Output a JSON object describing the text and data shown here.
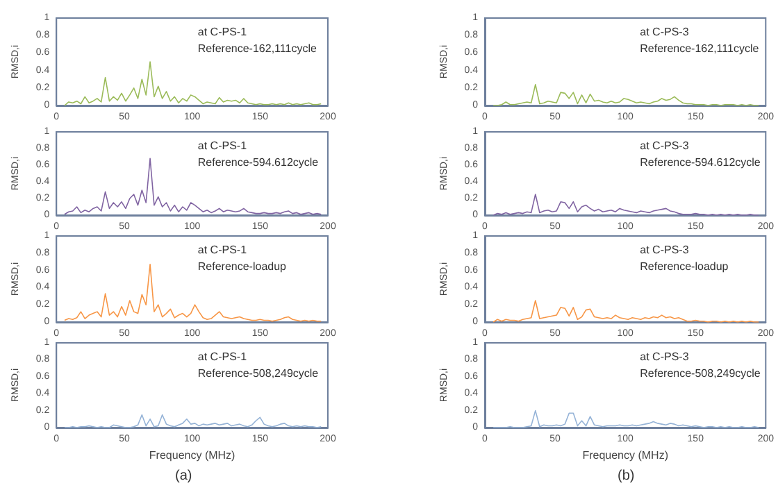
{
  "chart_data": [
    {
      "type": "line",
      "ylabel": "RMSD,i",
      "annotations": [
        "at C-PS-1",
        "Reference-162,111cycle"
      ],
      "xlim": [
        0,
        200
      ],
      "xticks": [
        0,
        50,
        100,
        150,
        200
      ],
      "ylim": [
        0,
        1
      ],
      "yticks": [
        0,
        0.2,
        0.4,
        0.6,
        0.8,
        1
      ],
      "grid": false,
      "marker": "none",
      "x": [
        6,
        9,
        12,
        15,
        18,
        21,
        24,
        27,
        30,
        33,
        36,
        39,
        42,
        45,
        48,
        51,
        54,
        57,
        60,
        63,
        66,
        69,
        72,
        75,
        78,
        81,
        84,
        87,
        90,
        93,
        96,
        99,
        102,
        105,
        108,
        111,
        114,
        117,
        120,
        123,
        126,
        129,
        132,
        135,
        138,
        141,
        144,
        147,
        150,
        153,
        156,
        159,
        162,
        165,
        168,
        171,
        174,
        177,
        180,
        183,
        186,
        189,
        192,
        195
      ],
      "series": [
        {
          "color": "#9bbb59",
          "values": [
            0,
            0.04,
            0.03,
            0.05,
            0.02,
            0.1,
            0.03,
            0.05,
            0.08,
            0.04,
            0.32,
            0.05,
            0.1,
            0.06,
            0.14,
            0.05,
            0.12,
            0.2,
            0.08,
            0.3,
            0.12,
            0.5,
            0.1,
            0.22,
            0.08,
            0.16,
            0.05,
            0.1,
            0.03,
            0.08,
            0.05,
            0.12,
            0.1,
            0.06,
            0.02,
            0.04,
            0.03,
            0.02,
            0.09,
            0.04,
            0.06,
            0.05,
            0.06,
            0.03,
            0.08,
            0.03,
            0.02,
            0.01,
            0.02,
            0.01,
            0.01,
            0.02,
            0.01,
            0.02,
            0.01,
            0.03,
            0.01,
            0.02,
            0.01,
            0.02,
            0.03,
            0.01,
            0.01,
            0.02
          ]
        }
      ]
    },
    {
      "type": "line",
      "ylabel": "RMSD,i",
      "annotations": [
        "at C-PS-1",
        "Reference-594.612cycle"
      ],
      "xlim": [
        0,
        200
      ],
      "xticks": [
        0,
        50,
        100,
        150,
        200
      ],
      "ylim": [
        0,
        1
      ],
      "yticks": [
        0,
        0.2,
        0.4,
        0.6,
        0.8,
        1
      ],
      "grid": false,
      "marker": "none",
      "x": [
        6,
        9,
        12,
        15,
        18,
        21,
        24,
        27,
        30,
        33,
        36,
        39,
        42,
        45,
        48,
        51,
        54,
        57,
        60,
        63,
        66,
        69,
        72,
        75,
        78,
        81,
        84,
        87,
        90,
        93,
        96,
        99,
        102,
        105,
        108,
        111,
        114,
        117,
        120,
        123,
        126,
        129,
        132,
        135,
        138,
        141,
        144,
        147,
        150,
        153,
        156,
        159,
        162,
        165,
        168,
        171,
        174,
        177,
        180,
        183,
        186,
        189,
        192,
        195
      ],
      "series": [
        {
          "color": "#8064a2",
          "values": [
            0.01,
            0.04,
            0.05,
            0.1,
            0.03,
            0.06,
            0.04,
            0.08,
            0.1,
            0.05,
            0.28,
            0.08,
            0.15,
            0.1,
            0.16,
            0.08,
            0.2,
            0.25,
            0.12,
            0.3,
            0.15,
            0.68,
            0.12,
            0.22,
            0.1,
            0.15,
            0.05,
            0.12,
            0.04,
            0.1,
            0.06,
            0.15,
            0.12,
            0.08,
            0.04,
            0.06,
            0.03,
            0.05,
            0.08,
            0.04,
            0.06,
            0.05,
            0.04,
            0.05,
            0.08,
            0.04,
            0.03,
            0.02,
            0.02,
            0.03,
            0.02,
            0.02,
            0.03,
            0.02,
            0.04,
            0.05,
            0.02,
            0.03,
            0.01,
            0.02,
            0.03,
            0.01,
            0.02,
            0.01
          ]
        }
      ]
    },
    {
      "type": "line",
      "ylabel": "RMSD,i",
      "annotations": [
        "at C-PS-1",
        "Reference-loadup"
      ],
      "xlim": [
        0,
        200
      ],
      "xticks": [
        0,
        50,
        100,
        150,
        200
      ],
      "ylim": [
        0,
        1
      ],
      "yticks": [
        0,
        0.2,
        0.4,
        0.6,
        0.8,
        1
      ],
      "grid": false,
      "marker": "none",
      "x": [
        6,
        9,
        12,
        15,
        18,
        21,
        24,
        27,
        30,
        33,
        36,
        39,
        42,
        45,
        48,
        51,
        54,
        57,
        60,
        63,
        66,
        69,
        72,
        75,
        78,
        81,
        84,
        87,
        90,
        93,
        96,
        99,
        102,
        105,
        108,
        111,
        114,
        117,
        120,
        123,
        126,
        129,
        132,
        135,
        138,
        141,
        144,
        147,
        150,
        153,
        156,
        159,
        162,
        165,
        168,
        171,
        174,
        177,
        180,
        183,
        186,
        189,
        192,
        195
      ],
      "series": [
        {
          "color": "#f79646",
          "values": [
            0.02,
            0.04,
            0.03,
            0.05,
            0.12,
            0.04,
            0.08,
            0.1,
            0.12,
            0.06,
            0.33,
            0.08,
            0.12,
            0.06,
            0.18,
            0.08,
            0.25,
            0.12,
            0.1,
            0.32,
            0.2,
            0.67,
            0.12,
            0.2,
            0.06,
            0.1,
            0.15,
            0.05,
            0.08,
            0.1,
            0.06,
            0.1,
            0.2,
            0.12,
            0.05,
            0.03,
            0.04,
            0.08,
            0.12,
            0.06,
            0.05,
            0.04,
            0.05,
            0.06,
            0.04,
            0.03,
            0.02,
            0.02,
            0.03,
            0.02,
            0.02,
            0.01,
            0.02,
            0.03,
            0.05,
            0.06,
            0.03,
            0.02,
            0.01,
            0.02,
            0.01,
            0.02,
            0.01,
            0.01
          ]
        }
      ]
    },
    {
      "type": "line",
      "ylabel": "RMSD,i",
      "xlabel": "Frequency (MHz)",
      "annotations": [
        "at C-PS-1",
        "Reference-508,249cycle",
        "(a)"
      ],
      "xlim": [
        0,
        200
      ],
      "xticks": [
        0,
        50,
        100,
        150,
        200
      ],
      "ylim": [
        0,
        1
      ],
      "yticks": [
        0,
        0.2,
        0.4,
        0.6,
        0.8,
        1
      ],
      "grid": false,
      "marker": "none",
      "x": [
        6,
        9,
        12,
        15,
        18,
        21,
        24,
        27,
        30,
        33,
        36,
        39,
        42,
        45,
        48,
        51,
        54,
        57,
        60,
        63,
        66,
        69,
        72,
        75,
        78,
        81,
        84,
        87,
        90,
        93,
        96,
        99,
        102,
        105,
        108,
        111,
        114,
        117,
        120,
        123,
        126,
        129,
        132,
        135,
        138,
        141,
        144,
        147,
        150,
        153,
        156,
        159,
        162,
        165,
        168,
        171,
        174,
        177,
        180,
        183,
        186,
        189,
        192,
        195
      ],
      "series": [
        {
          "color": "#95b3d7",
          "values": [
            0,
            0,
            0.01,
            0,
            0.01,
            0.01,
            0.02,
            0.01,
            0,
            0.01,
            0,
            0,
            0.03,
            0.02,
            0.01,
            0,
            0,
            0.01,
            0.03,
            0.15,
            0.02,
            0.1,
            0.01,
            0.02,
            0.15,
            0.04,
            0.02,
            0.01,
            0.03,
            0.05,
            0.1,
            0.04,
            0.05,
            0.02,
            0.04,
            0.03,
            0.04,
            0.05,
            0.03,
            0.04,
            0.05,
            0.02,
            0.03,
            0.04,
            0.02,
            0.01,
            0.03,
            0.08,
            0.12,
            0.04,
            0.02,
            0.01,
            0.02,
            0.04,
            0.05,
            0.02,
            0.01,
            0.02,
            0.01,
            0.02,
            0.01,
            0.01,
            0,
            0.01
          ]
        }
      ]
    },
    {
      "type": "line",
      "ylabel": "RMSD,i",
      "annotations": [
        "at C-PS-3",
        "Reference-162,111cycle"
      ],
      "xlim": [
        0,
        200
      ],
      "xticks": [
        0,
        50,
        100,
        150,
        200
      ],
      "ylim": [
        0,
        1
      ],
      "yticks": [
        0,
        0.2,
        0.4,
        0.6,
        0.8,
        1
      ],
      "grid": false,
      "marker": "none",
      "x": [
        6,
        9,
        12,
        15,
        18,
        21,
        24,
        27,
        30,
        33,
        36,
        39,
        42,
        45,
        48,
        51,
        54,
        57,
        60,
        63,
        66,
        69,
        72,
        75,
        78,
        81,
        84,
        87,
        90,
        93,
        96,
        99,
        102,
        105,
        108,
        111,
        114,
        117,
        120,
        123,
        126,
        129,
        132,
        135,
        138,
        141,
        144,
        147,
        150,
        153,
        156,
        159,
        162,
        165,
        168,
        171,
        174,
        177,
        180,
        183,
        186,
        189,
        192,
        195
      ],
      "series": [
        {
          "color": "#9bbb59",
          "values": [
            0,
            0,
            0.01,
            0.04,
            0.01,
            0.01,
            0.02,
            0.03,
            0.04,
            0.03,
            0.24,
            0.02,
            0.03,
            0.05,
            0.04,
            0.03,
            0.15,
            0.14,
            0.08,
            0.15,
            0.02,
            0.12,
            0.03,
            0.13,
            0.05,
            0.06,
            0.04,
            0.03,
            0.05,
            0.03,
            0.04,
            0.08,
            0.07,
            0.05,
            0.03,
            0.04,
            0.03,
            0.02,
            0.04,
            0.05,
            0.08,
            0.06,
            0.07,
            0.1,
            0.06,
            0.03,
            0.02,
            0.02,
            0.01,
            0.01,
            0.01,
            0,
            0.01,
            0.01,
            0,
            0.01,
            0.01,
            0.01,
            0,
            0.01,
            0,
            0.01,
            0,
            0
          ]
        }
      ]
    },
    {
      "type": "line",
      "ylabel": "RMSD,i",
      "annotations": [
        "at C-PS-3",
        "Reference-594.612cycle"
      ],
      "xlim": [
        0,
        200
      ],
      "xticks": [
        0,
        50,
        100,
        150,
        200
      ],
      "ylim": [
        0,
        1
      ],
      "yticks": [
        0,
        0.2,
        0.4,
        0.6,
        0.8,
        1
      ],
      "grid": false,
      "marker": "none",
      "x": [
        6,
        9,
        12,
        15,
        18,
        21,
        24,
        27,
        30,
        33,
        36,
        39,
        42,
        45,
        48,
        51,
        54,
        57,
        60,
        63,
        66,
        69,
        72,
        75,
        78,
        81,
        84,
        87,
        90,
        93,
        96,
        99,
        102,
        105,
        108,
        111,
        114,
        117,
        120,
        123,
        126,
        129,
        132,
        135,
        138,
        141,
        144,
        147,
        150,
        153,
        156,
        159,
        162,
        165,
        168,
        171,
        174,
        177,
        180,
        183,
        186,
        189,
        192,
        195
      ],
      "series": [
        {
          "color": "#8064a2",
          "values": [
            0,
            0.02,
            0.01,
            0.03,
            0.01,
            0.02,
            0.03,
            0.02,
            0.04,
            0.03,
            0.25,
            0.03,
            0.05,
            0.06,
            0.04,
            0.05,
            0.16,
            0.15,
            0.08,
            0.16,
            0.04,
            0.1,
            0.12,
            0.08,
            0.05,
            0.07,
            0.04,
            0.05,
            0.06,
            0.04,
            0.08,
            0.06,
            0.05,
            0.04,
            0.03,
            0.05,
            0.04,
            0.03,
            0.05,
            0.06,
            0.07,
            0.08,
            0.05,
            0.04,
            0.02,
            0.01,
            0.01,
            0.01,
            0.02,
            0.01,
            0.01,
            0,
            0.01,
            0,
            0.01,
            0,
            0.01,
            0,
            0.01,
            0,
            0,
            0.01,
            0,
            0
          ]
        }
      ]
    },
    {
      "type": "line",
      "ylabel": "RMSD,i",
      "annotations": [
        "at C-PS-3",
        "Reference-loadup"
      ],
      "xlim": [
        0,
        200
      ],
      "xticks": [
        0,
        50,
        100,
        150,
        200
      ],
      "ylim": [
        0,
        1
      ],
      "yticks": [
        0,
        0.2,
        0.4,
        0.6,
        0.8,
        1
      ],
      "grid": false,
      "marker": "none",
      "x": [
        6,
        9,
        12,
        15,
        18,
        21,
        24,
        27,
        30,
        33,
        36,
        39,
        42,
        45,
        48,
        51,
        54,
        57,
        60,
        63,
        66,
        69,
        72,
        75,
        78,
        81,
        84,
        87,
        90,
        93,
        96,
        99,
        102,
        105,
        108,
        111,
        114,
        117,
        120,
        123,
        126,
        129,
        132,
        135,
        138,
        141,
        144,
        147,
        150,
        153,
        156,
        159,
        162,
        165,
        168,
        171,
        174,
        177,
        180,
        183,
        186,
        189,
        192,
        195
      ],
      "series": [
        {
          "color": "#f79646",
          "values": [
            0,
            0.03,
            0.01,
            0.03,
            0.02,
            0.02,
            0.01,
            0.03,
            0.04,
            0.05,
            0.25,
            0.04,
            0.05,
            0.06,
            0.07,
            0.08,
            0.17,
            0.16,
            0.07,
            0.17,
            0.03,
            0.06,
            0.14,
            0.15,
            0.06,
            0.05,
            0.04,
            0.05,
            0.04,
            0.08,
            0.05,
            0.04,
            0.03,
            0.05,
            0.04,
            0.03,
            0.05,
            0.04,
            0.06,
            0.05,
            0.08,
            0.05,
            0.06,
            0.04,
            0.05,
            0.03,
            0.01,
            0.01,
            0.02,
            0.01,
            0.01,
            0,
            0.01,
            0.01,
            0,
            0.01,
            0,
            0.01,
            0,
            0.01,
            0,
            0.01,
            0,
            0
          ]
        }
      ]
    },
    {
      "type": "line",
      "ylabel": "RMSD,i",
      "xlabel": "Frequency (MHz)",
      "annotations": [
        "at C-PS-3",
        "Reference-508,249cycle",
        "(b)"
      ],
      "xlim": [
        0,
        200
      ],
      "xticks": [
        0,
        50,
        100,
        150,
        200
      ],
      "ylim": [
        0,
        1
      ],
      "yticks": [
        0,
        0.2,
        0.4,
        0.6,
        0.8,
        1
      ],
      "grid": false,
      "marker": "none",
      "x": [
        6,
        9,
        12,
        15,
        18,
        21,
        24,
        27,
        30,
        33,
        36,
        39,
        42,
        45,
        48,
        51,
        54,
        57,
        60,
        63,
        66,
        69,
        72,
        75,
        78,
        81,
        84,
        87,
        90,
        93,
        96,
        99,
        102,
        105,
        108,
        111,
        114,
        117,
        120,
        123,
        126,
        129,
        132,
        135,
        138,
        141,
        144,
        147,
        150,
        153,
        156,
        159,
        162,
        165,
        168,
        171,
        174,
        177,
        180,
        183,
        186,
        189,
        192,
        195
      ],
      "series": [
        {
          "color": "#95b3d7",
          "values": [
            0,
            0,
            0,
            0,
            0.01,
            0,
            0,
            0,
            0.01,
            0.02,
            0.2,
            0.01,
            0.03,
            0.02,
            0.02,
            0.03,
            0.02,
            0.04,
            0.17,
            0.17,
            0.02,
            0.08,
            0.02,
            0.13,
            0.03,
            0.02,
            0.01,
            0.02,
            0.02,
            0.02,
            0.03,
            0.02,
            0.02,
            0.03,
            0.02,
            0.03,
            0.04,
            0.05,
            0.07,
            0.05,
            0.04,
            0.03,
            0.05,
            0.04,
            0.02,
            0.03,
            0.02,
            0.01,
            0.02,
            0.01,
            0,
            0.01,
            0.01,
            0,
            0.01,
            0,
            0.01,
            0,
            0,
            0.01,
            0,
            0,
            0.01,
            0
          ]
        }
      ]
    }
  ]
}
